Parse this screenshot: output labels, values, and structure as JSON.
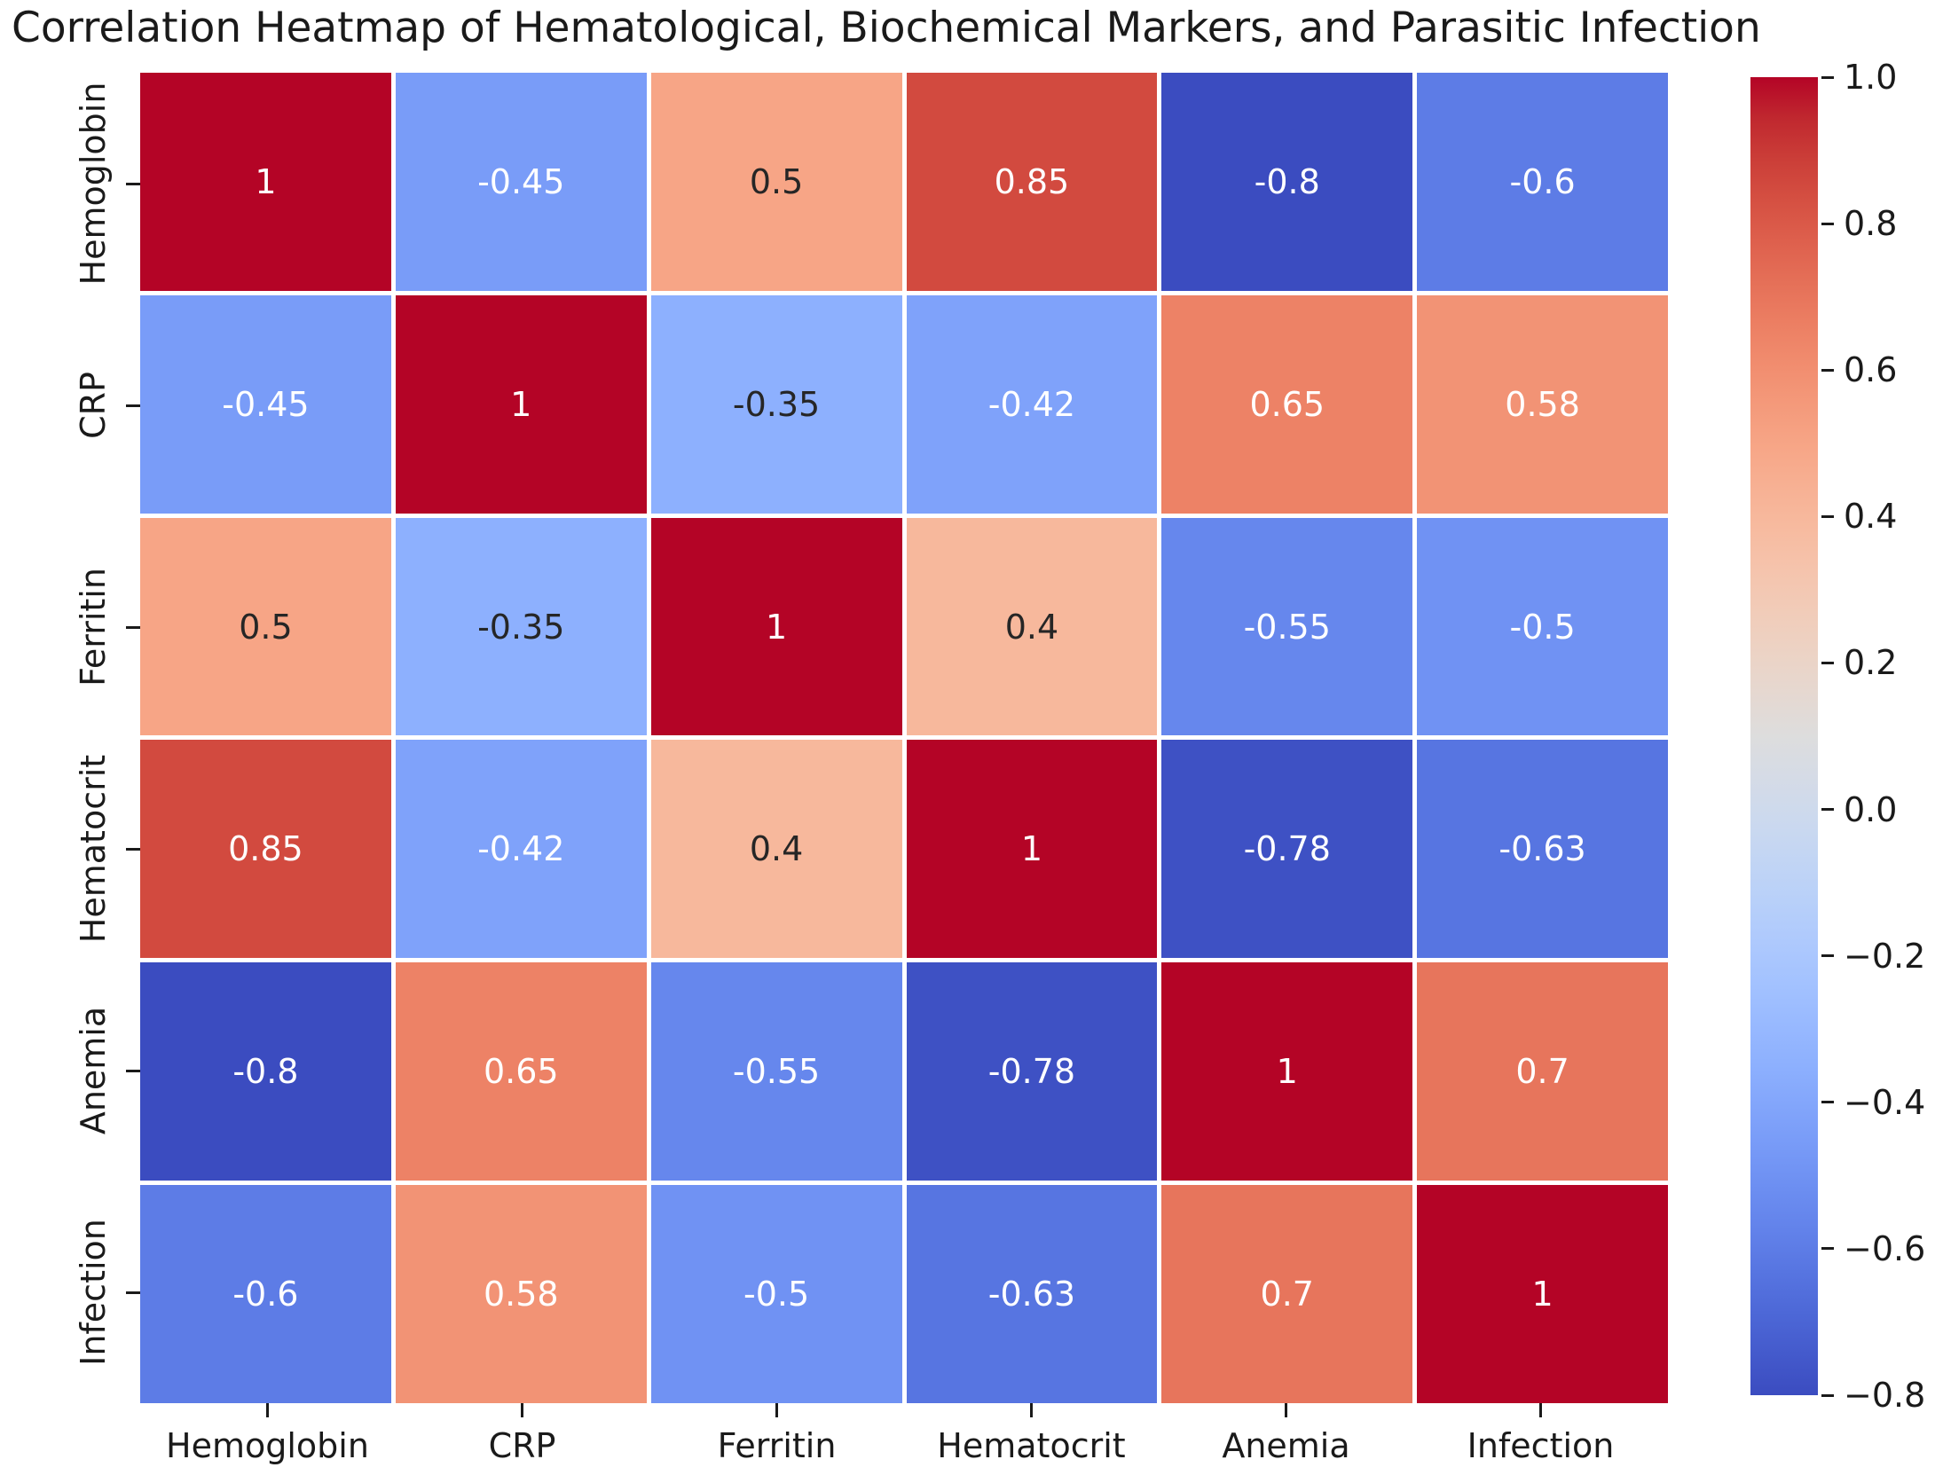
{
  "title": "Correlation Heatmap of Hematological, Biochemical Markers, and Parasitic Infection",
  "chart_data": {
    "type": "heatmap",
    "colormap": "coolwarm",
    "vmin": -0.8,
    "vmax": 1.0,
    "categories": [
      "Hemoglobin",
      "CRP",
      "Ferritin",
      "Hematocrit",
      "Anemia",
      "Infection"
    ],
    "matrix": [
      [
        1,
        -0.45,
        0.5,
        0.85,
        -0.8,
        -0.6
      ],
      [
        -0.45,
        1,
        -0.35,
        -0.42,
        0.65,
        0.58
      ],
      [
        0.5,
        -0.35,
        1,
        0.4,
        -0.55,
        -0.5
      ],
      [
        0.85,
        -0.42,
        0.4,
        1,
        -0.78,
        -0.63
      ],
      [
        -0.8,
        0.65,
        -0.55,
        -0.78,
        1,
        0.7
      ],
      [
        -0.6,
        0.58,
        -0.5,
        -0.63,
        0.7,
        1
      ]
    ],
    "cell_labels": [
      [
        "1",
        "-0.45",
        "0.5",
        "0.85",
        "-0.8",
        "-0.6"
      ],
      [
        "-0.45",
        "1",
        "-0.35",
        "-0.42",
        "0.65",
        "0.58"
      ],
      [
        "0.5",
        "-0.35",
        "1",
        "0.4",
        "-0.55",
        "-0.5"
      ],
      [
        "0.85",
        "-0.42",
        "0.4",
        "1",
        "-0.78",
        "-0.63"
      ],
      [
        "-0.8",
        "0.65",
        "-0.55",
        "-0.78",
        "1",
        "0.7"
      ],
      [
        "-0.6",
        "0.58",
        "-0.5",
        "-0.63",
        "0.7",
        "1"
      ]
    ],
    "annot_color_dark": "#262626",
    "annot_color_light": "#ffffff",
    "grid_line_color": "#ffffff",
    "colorbar": {
      "tick_labels": [
        "1.0",
        "0.8",
        "0.6",
        "0.4",
        "0.2",
        "0.0",
        "−0.2",
        "−0.4",
        "−0.6",
        "−0.8"
      ],
      "tick_values": [
        1.0,
        0.8,
        0.6,
        0.4,
        0.2,
        0.0,
        -0.2,
        -0.4,
        -0.6,
        -0.8
      ],
      "position": "right"
    }
  }
}
